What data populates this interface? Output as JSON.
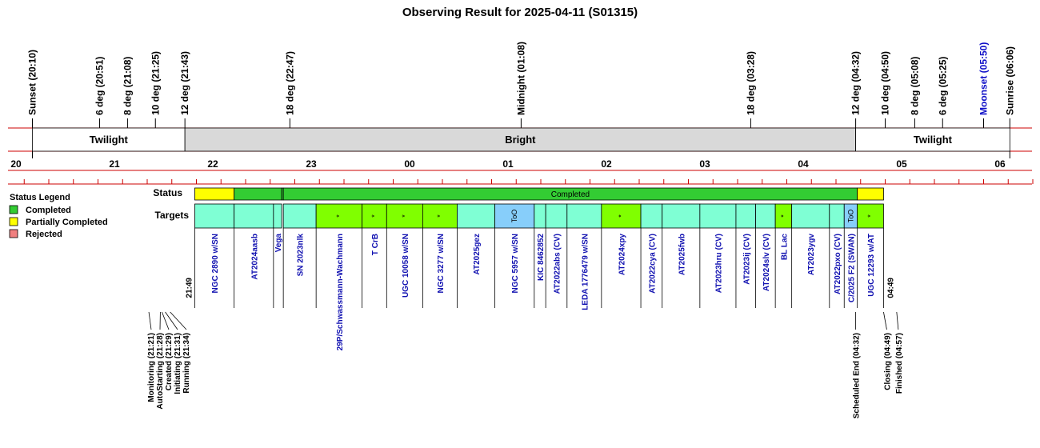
{
  "chart_data": {
    "type": "timeline",
    "title": "Observing Result for 2025-04-11 (S01315)",
    "time_axis": {
      "start": "19:50",
      "end": "06:20",
      "hour_labels": [
        "20",
        "21",
        "22",
        "23",
        "00",
        "01",
        "02",
        "03",
        "04",
        "05",
        "06"
      ]
    },
    "markers": [
      {
        "label": "Sunset (20:10)",
        "time": "20:10",
        "color": "#000000"
      },
      {
        "label": "6 deg (20:51)",
        "time": "20:51",
        "color": "#000000"
      },
      {
        "label": "8 deg (21:08)",
        "time": "21:08",
        "color": "#000000"
      },
      {
        "label": "10 deg (21:25)",
        "time": "21:25",
        "color": "#000000"
      },
      {
        "label": "12 deg (21:43)",
        "time": "21:43",
        "color": "#000000"
      },
      {
        "label": "18 deg (22:47)",
        "time": "22:47",
        "color": "#000000"
      },
      {
        "label": "Midnight (01:08)",
        "time": "01:08",
        "color": "#000000"
      },
      {
        "label": "18 deg (03:28)",
        "time": "03:28",
        "color": "#000000"
      },
      {
        "label": "12 deg (04:32)",
        "time": "04:32",
        "color": "#000000"
      },
      {
        "label": "10 deg (04:50)",
        "time": "04:50",
        "color": "#000000"
      },
      {
        "label": "8 deg (05:08)",
        "time": "05:08",
        "color": "#000000"
      },
      {
        "label": "6 deg (05:25)",
        "time": "05:25",
        "color": "#000000"
      },
      {
        "label": "Moonset (05:50)",
        "time": "05:50",
        "color": "#1010c8"
      },
      {
        "label": "Sunrise (06:06)",
        "time": "06:06",
        "color": "#000000"
      }
    ],
    "sky_bands": [
      {
        "label": "Twilight",
        "start": "20:10",
        "end": "21:43",
        "shaded": false
      },
      {
        "label": "Bright",
        "start": "21:43",
        "end": "04:32",
        "shaded": true
      },
      {
        "label": "Twilight",
        "start": "04:32",
        "end": "06:06",
        "shaded": false
      }
    ],
    "status_row_label": "Status",
    "status_segments": [
      {
        "start": "21:49",
        "end": "22:13",
        "status": "partial",
        "label": ""
      },
      {
        "start": "22:13",
        "end": "22:42",
        "status": "completed",
        "label": ""
      },
      {
        "start": "22:42",
        "end": "22:43",
        "status": "completed",
        "label": ""
      },
      {
        "start": "22:43",
        "end": "04:33",
        "status": "completed",
        "label": "Completed"
      },
      {
        "start": "04:33",
        "end": "04:49",
        "status": "partial",
        "label": ""
      }
    ],
    "targets_row_label": "Targets",
    "targets": [
      {
        "name": "NGC 2890 w/SN",
        "start": "21:49",
        "end": "22:13",
        "kind": "normal",
        "mark": ""
      },
      {
        "name": "AT2024aasb",
        "start": "22:13",
        "end": "22:37",
        "kind": "normal",
        "mark": ""
      },
      {
        "name": "Vega",
        "start": "22:37",
        "end": "22:42",
        "kind": "normal",
        "mark": ""
      },
      {
        "name": "SN 2023nlk",
        "start": "22:43",
        "end": "23:03",
        "kind": "normal",
        "mark": ""
      },
      {
        "name": "29P/Schwassmann-Wachmann",
        "start": "23:03",
        "end": "23:31",
        "kind": "special",
        "mark": "*"
      },
      {
        "name": "T CrB",
        "start": "23:31",
        "end": "23:46",
        "kind": "special",
        "mark": "*"
      },
      {
        "name": "UGC 10058 w/SN",
        "start": "23:46",
        "end": "00:08",
        "kind": "special",
        "mark": "*"
      },
      {
        "name": "NGC 3277 w/SN",
        "start": "00:08",
        "end": "00:29",
        "kind": "special",
        "mark": "*"
      },
      {
        "name": "AT2025gez",
        "start": "00:29",
        "end": "00:52",
        "kind": "normal",
        "mark": ""
      },
      {
        "name": "NGC 5957 w/SN",
        "start": "00:52",
        "end": "01:16",
        "kind": "too",
        "mark": "ToO"
      },
      {
        "name": "KIC 8462852",
        "start": "01:16",
        "end": "01:23",
        "kind": "normal",
        "mark": ""
      },
      {
        "name": "AT2022abs (CV)",
        "start": "01:23",
        "end": "01:36",
        "kind": "normal",
        "mark": ""
      },
      {
        "name": "LEDA 1776479 w/SN",
        "start": "01:36",
        "end": "01:57",
        "kind": "normal",
        "mark": ""
      },
      {
        "name": "AT2024xpy",
        "start": "01:57",
        "end": "02:21",
        "kind": "special",
        "mark": "*"
      },
      {
        "name": "AT2022cya (CV)",
        "start": "02:21",
        "end": "02:34",
        "kind": "normal",
        "mark": ""
      },
      {
        "name": "AT2025fwb",
        "start": "02:34",
        "end": "02:57",
        "kind": "normal",
        "mark": ""
      },
      {
        "name": "AT2023hru (CV)",
        "start": "02:57",
        "end": "03:19",
        "kind": "normal",
        "mark": ""
      },
      {
        "name": "AT2023ij (CV)",
        "start": "03:19",
        "end": "03:31",
        "kind": "normal",
        "mark": ""
      },
      {
        "name": "AT2024slv (CV)",
        "start": "03:31",
        "end": "03:43",
        "kind": "normal",
        "mark": ""
      },
      {
        "name": "BL Lac",
        "start": "03:43",
        "end": "03:53",
        "kind": "special",
        "mark": "*"
      },
      {
        "name": "AT2023ygv",
        "start": "03:53",
        "end": "04:16",
        "kind": "normal",
        "mark": ""
      },
      {
        "name": "AT2022pxo (CV)",
        "start": "04:16",
        "end": "04:25",
        "kind": "normal",
        "mark": ""
      },
      {
        "name": "C/2025 F2 (SWAN)",
        "start": "04:25",
        "end": "04:33",
        "kind": "too",
        "mark": "ToO"
      },
      {
        "name": "UGC 12293 w/AT",
        "start": "04:33",
        "end": "04:49",
        "kind": "special",
        "mark": "*"
      }
    ],
    "start_time_label": "21:49",
    "end_time_label": "04:49",
    "events": [
      {
        "label": "Monitoring (21:21)",
        "time": "21:21"
      },
      {
        "label": "AutoStarting (21:28)",
        "time": "21:28"
      },
      {
        "label": "Created (21:29)",
        "time": "21:29"
      },
      {
        "label": "Initiating (21:31)",
        "time": "21:31"
      },
      {
        "label": "Running (21:34)",
        "time": "21:34"
      },
      {
        "label": "Scheduled End (04:32)",
        "time": "04:32"
      },
      {
        "label": "Closing (04:49)",
        "time": "04:49"
      },
      {
        "label": "Finished (04:57)",
        "time": "04:57"
      }
    ],
    "legend": {
      "title": "Status Legend",
      "position": "left",
      "items": [
        {
          "label": "Completed",
          "color": "#33cc33"
        },
        {
          "label": "Partially Completed",
          "color": "#ffff00"
        },
        {
          "label": "Rejected",
          "color": "#f08080"
        }
      ]
    },
    "colors": {
      "completed": "#33cc33",
      "partial": "#ffff00",
      "normal_target": "#7fffd4",
      "special_target": "#80ff00",
      "too_target": "#87cefa",
      "bright_band": "#d9d9d9",
      "axis_line": "#cc0000",
      "target_text": "#1010b0"
    }
  }
}
